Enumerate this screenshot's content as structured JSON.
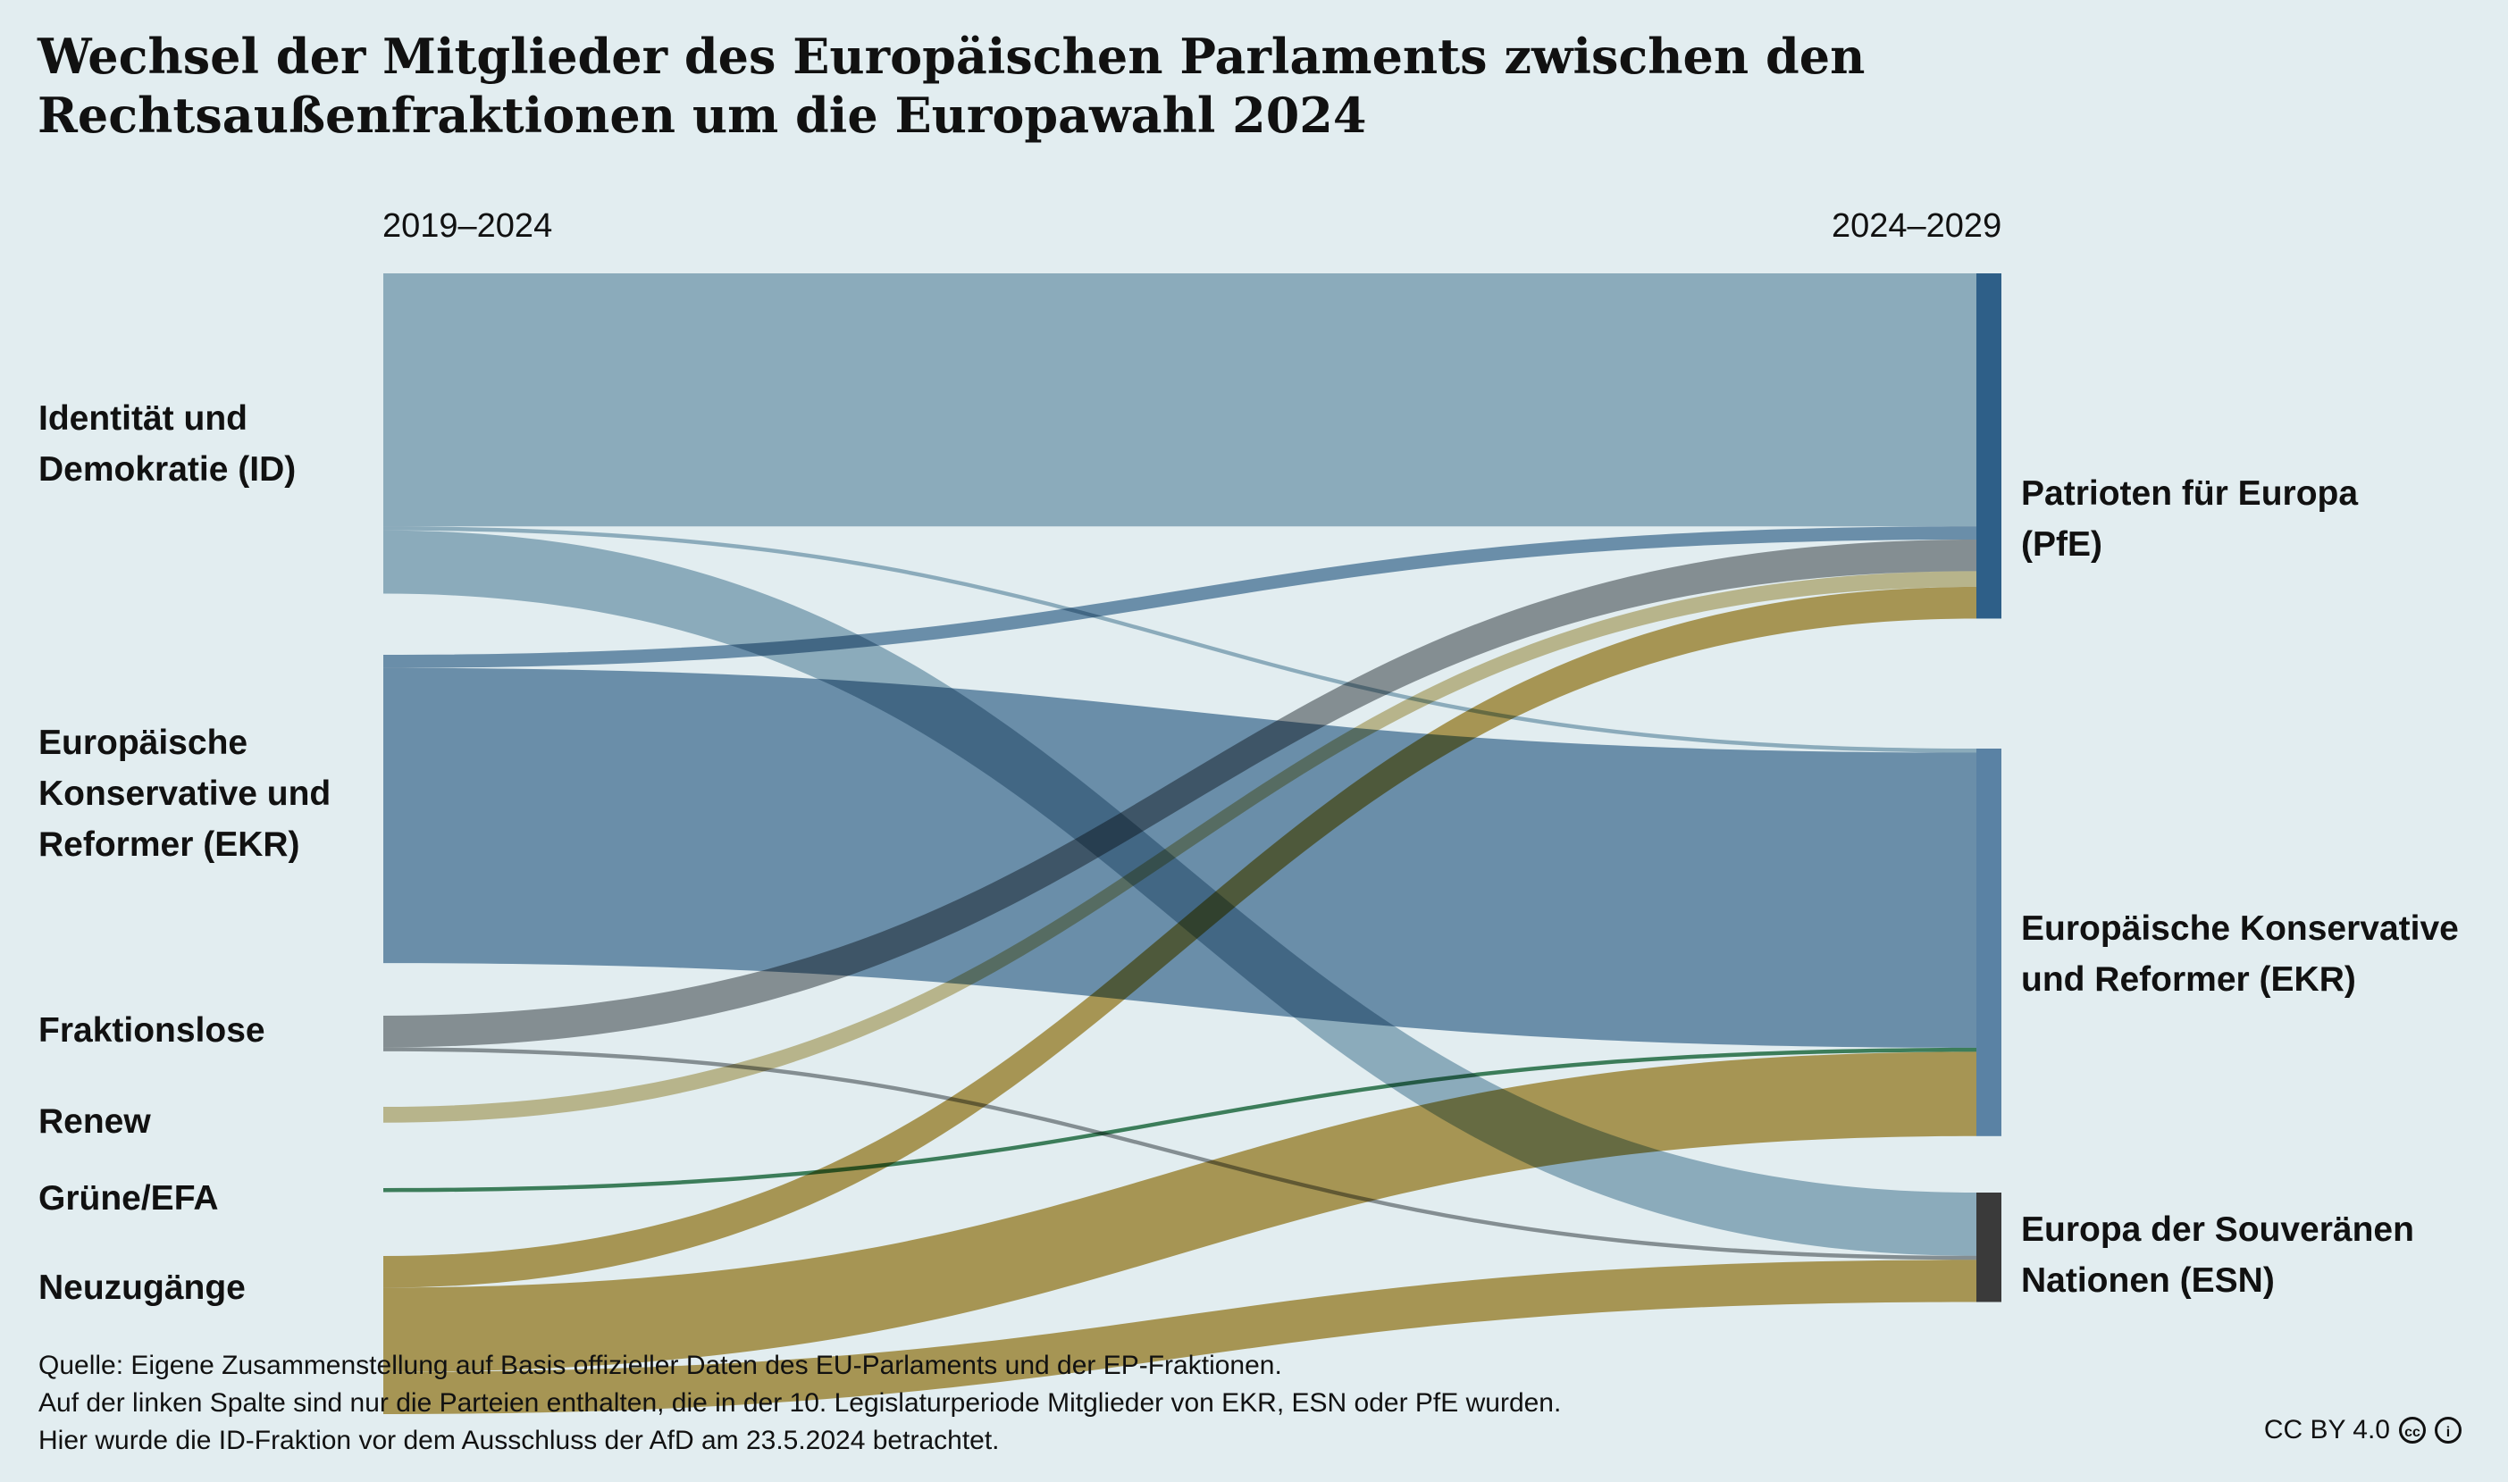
{
  "title": "Wechsel der Mitglieder des Europäischen Parlaments zwischen den Rechtsaußenfraktionen um die Europawahl 2024",
  "columns": {
    "left": "2019–2024",
    "right": "2024–2029"
  },
  "left_nodes": [
    {
      "label": "Identität und Demokratie (ID)",
      "color": "#88a8bb"
    },
    {
      "label": "Europäische Konservative und Reformer (EKR)",
      "color": "#5a82a4"
    },
    {
      "label": "Fraktionslose",
      "color": "#7e8285"
    },
    {
      "label": "Renew",
      "color": "#c5b57c"
    },
    {
      "label": "Grüne/EFA",
      "color": "#1a6b3c"
    },
    {
      "label": "Neuzugänge",
      "color": "#ac8b34"
    }
  ],
  "right_nodes": [
    {
      "label": "Patrioten für Europa (PfE)",
      "color": "#2e5f88"
    },
    {
      "label": "Europäische Konservative und Reformer (EKR)",
      "color": "#5a82a4"
    },
    {
      "label": "Europa der Souveränen Nationen (ESN)",
      "color": "#3a3a3a"
    }
  ],
  "chart_data": {
    "type": "sankey",
    "flows": [
      {
        "from": 0,
        "to": 0,
        "value": 48
      },
      {
        "from": 0,
        "to": 1,
        "value": 0.5
      },
      {
        "from": 0,
        "to": 2,
        "value": 12
      },
      {
        "from": 1,
        "to": 0,
        "value": 2.5
      },
      {
        "from": 1,
        "to": 1,
        "value": 56
      },
      {
        "from": 2,
        "to": 0,
        "value": 6
      },
      {
        "from": 2,
        "to": 2,
        "value": 0.5
      },
      {
        "from": 3,
        "to": 0,
        "value": 3
      },
      {
        "from": 4,
        "to": 1,
        "value": 0.5
      },
      {
        "from": 5,
        "to": 0,
        "value": 6
      },
      {
        "from": 5,
        "to": 1,
        "value": 16
      },
      {
        "from": 5,
        "to": 2,
        "value": 8
      }
    ]
  },
  "footer": {
    "source": "Quelle: Eigene Zusammenstellung auf Basis offizieller Daten des EU-Parlaments und der EP-Fraktionen.",
    "note1": "Auf der linken Spalte sind nur die Parteien enthalten, die in der 10. Legislaturperiode Mitglieder von EKR, ESN oder PfE wurden.",
    "note2": "Hier wurde die ID-Fraktion vor dem Ausschluss der AfD am 23.5.2024 betrachtet.",
    "license": "CC BY 4.0"
  }
}
